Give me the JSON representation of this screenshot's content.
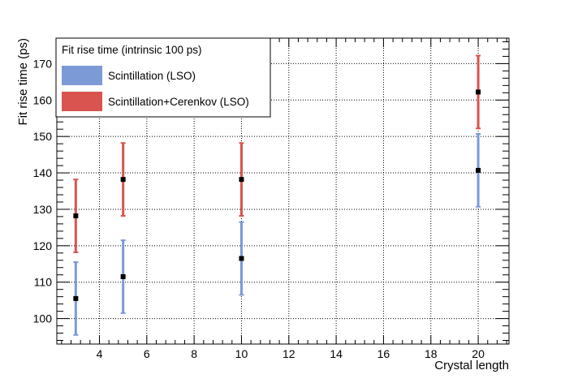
{
  "chart_data": {
    "type": "scatter",
    "title": "",
    "xlabel": "Crystal length",
    "ylabel": "Fit rise time (ps)",
    "xlim": [
      2.2,
      21.3
    ],
    "ylim": [
      93,
      177
    ],
    "xticks": [
      4,
      6,
      8,
      10,
      12,
      14,
      16,
      18,
      20
    ],
    "yticks": [
      100,
      110,
      120,
      130,
      140,
      150,
      160,
      170
    ],
    "grid": true,
    "legend": {
      "title": "Fit rise time (intrinsic 100 ps)",
      "position": "top-left"
    },
    "series": [
      {
        "name": "Scintillation (LSO)",
        "color": "#7b9ad6",
        "marker_color": "#000000",
        "x": [
          3,
          5,
          10,
          20
        ],
        "y": [
          105.5,
          111.5,
          116.5,
          140.7
        ],
        "yerr": [
          10,
          10,
          10,
          10
        ]
      },
      {
        "name": "Scintillation+Cerenkov (LSO)",
        "color": "#d9534f",
        "marker_color": "#000000",
        "x": [
          3,
          5,
          10,
          20
        ],
        "y": [
          128.2,
          138.2,
          138.2,
          162.2
        ],
        "yerr": [
          10,
          10,
          10,
          10
        ]
      }
    ]
  }
}
